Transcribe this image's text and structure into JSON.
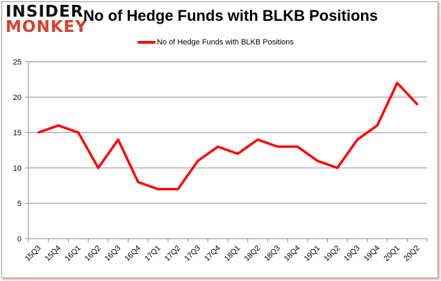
{
  "logo": {
    "line1": "INSIDER",
    "line2": "MONKEY"
  },
  "chart_data": {
    "type": "line",
    "title": "No of Hedge Funds with BLKB Positions",
    "xlabel": "",
    "ylabel": "",
    "categories": [
      "15Q3",
      "15Q4",
      "16Q1",
      "16Q2",
      "16Q3",
      "16Q4",
      "17Q1",
      "17Q2",
      "17Q3",
      "17Q4",
      "18Q1",
      "18Q2",
      "18Q3",
      "18Q4",
      "19Q1",
      "19Q2",
      "19Q3",
      "19Q4",
      "20Q1",
      "20Q2"
    ],
    "series": [
      {
        "name": "No of Hedge Funds with BLKB Positions",
        "color": "#ff0000",
        "values": [
          15,
          16,
          15,
          10,
          14,
          8,
          7,
          7,
          11,
          13,
          12,
          14,
          13,
          13,
          11,
          10,
          14,
          16,
          22,
          19
        ]
      }
    ],
    "ylim": [
      0,
      25
    ],
    "yticks": [
      0,
      5,
      10,
      15,
      20,
      25
    ],
    "grid": true,
    "legend": "top-center"
  }
}
